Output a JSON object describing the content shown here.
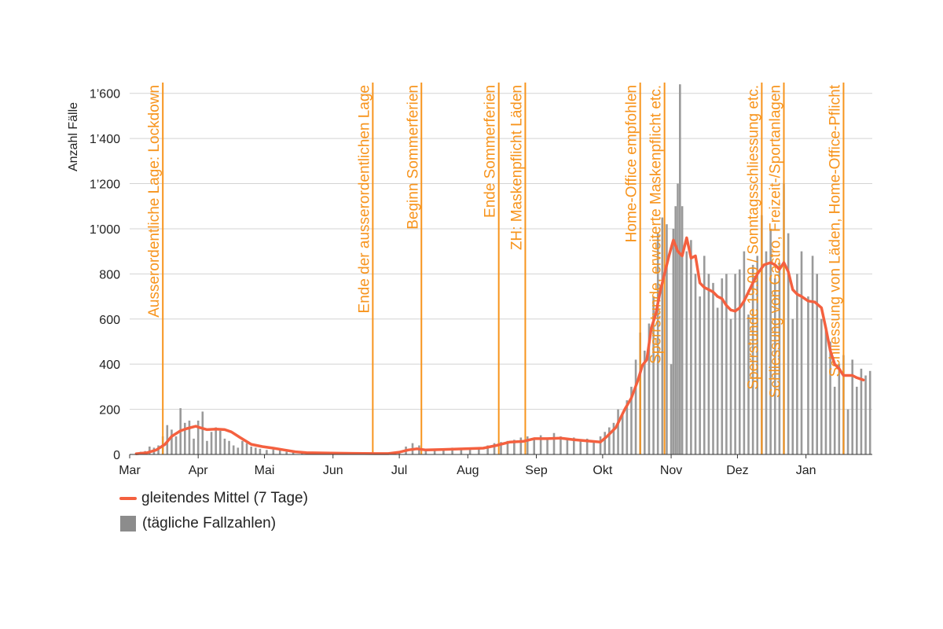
{
  "chart_data": {
    "type": "bar",
    "ylabel": "Anzahl Fälle",
    "ylim": [
      0,
      1700
    ],
    "yticks": [
      0,
      200,
      400,
      600,
      800,
      1000,
      1200,
      1400,
      1600
    ],
    "ytick_labels": [
      "0",
      "200",
      "400",
      "600",
      "800",
      "1’000",
      "1’200",
      "1’400",
      "1’600"
    ],
    "x_start": "2020-03-01",
    "x_end": "2021-01-31",
    "month_ticks": [
      {
        "date": "2020-03-01",
        "label": "Mar"
      },
      {
        "date": "2020-04-01",
        "label": "Apr"
      },
      {
        "date": "2020-05-01",
        "label": "Mai"
      },
      {
        "date": "2020-06-01",
        "label": "Jun"
      },
      {
        "date": "2020-07-01",
        "label": "Jul"
      },
      {
        "date": "2020-08-01",
        "label": "Aug"
      },
      {
        "date": "2020-09-01",
        "label": "Sep"
      },
      {
        "date": "2020-10-01",
        "label": "Okt"
      },
      {
        "date": "2020-11-01",
        "label": "Nov"
      },
      {
        "date": "2020-12-01",
        "label": "Dez"
      },
      {
        "date": "2021-01-01",
        "label": "Jan"
      }
    ],
    "grid": true,
    "legend_position": "bottom-left",
    "series": [
      {
        "name": "gleitendes Mittel (7 Tage)",
        "type": "line",
        "color": "#f4603f",
        "points": [
          [
            "2020-03-04",
            3
          ],
          [
            "2020-03-09",
            8
          ],
          [
            "2020-03-13",
            20
          ],
          [
            "2020-03-17",
            45
          ],
          [
            "2020-03-20",
            80
          ],
          [
            "2020-03-24",
            105
          ],
          [
            "2020-03-27",
            115
          ],
          [
            "2020-03-31",
            125
          ],
          [
            "2020-04-02",
            118
          ],
          [
            "2020-04-05",
            110
          ],
          [
            "2020-04-09",
            112
          ],
          [
            "2020-04-13",
            110
          ],
          [
            "2020-04-16",
            100
          ],
          [
            "2020-04-20",
            75
          ],
          [
            "2020-04-25",
            45
          ],
          [
            "2020-04-30",
            35
          ],
          [
            "2020-05-05",
            28
          ],
          [
            "2020-05-10",
            20
          ],
          [
            "2020-05-15",
            12
          ],
          [
            "2020-05-20",
            8
          ],
          [
            "2020-05-31",
            6
          ],
          [
            "2020-06-10",
            5
          ],
          [
            "2020-06-20",
            4
          ],
          [
            "2020-06-26",
            4
          ],
          [
            "2020-07-01",
            10
          ],
          [
            "2020-07-05",
            20
          ],
          [
            "2020-07-09",
            25
          ],
          [
            "2020-07-13",
            20
          ],
          [
            "2020-07-20",
            22
          ],
          [
            "2020-07-31",
            25
          ],
          [
            "2020-08-08",
            28
          ],
          [
            "2020-08-14",
            40
          ],
          [
            "2020-08-20",
            55
          ],
          [
            "2020-08-26",
            58
          ],
          [
            "2020-08-31",
            70
          ],
          [
            "2020-09-06",
            70
          ],
          [
            "2020-09-12",
            72
          ],
          [
            "2020-09-18",
            65
          ],
          [
            "2020-09-24",
            60
          ],
          [
            "2020-09-30",
            55
          ],
          [
            "2020-10-03",
            80
          ],
          [
            "2020-10-07",
            120
          ],
          [
            "2020-10-11",
            200
          ],
          [
            "2020-10-14",
            250
          ],
          [
            "2020-10-17",
            330
          ],
          [
            "2020-10-19",
            395
          ],
          [
            "2020-10-21",
            420
          ],
          [
            "2020-10-23",
            560
          ],
          [
            "2020-10-25",
            620
          ],
          [
            "2020-10-27",
            720
          ],
          [
            "2020-10-29",
            800
          ],
          [
            "2020-10-31",
            880
          ],
          [
            "2020-11-02",
            950
          ],
          [
            "2020-11-04",
            900
          ],
          [
            "2020-11-06",
            880
          ],
          [
            "2020-11-08",
            960
          ],
          [
            "2020-11-10",
            870
          ],
          [
            "2020-11-12",
            880
          ],
          [
            "2020-11-14",
            760
          ],
          [
            "2020-11-16",
            740
          ],
          [
            "2020-11-18",
            730
          ],
          [
            "2020-11-20",
            720
          ],
          [
            "2020-11-22",
            700
          ],
          [
            "2020-11-24",
            690
          ],
          [
            "2020-11-26",
            660
          ],
          [
            "2020-11-28",
            640
          ],
          [
            "2020-11-30",
            635
          ],
          [
            "2020-12-02",
            650
          ],
          [
            "2020-12-04",
            680
          ],
          [
            "2020-12-06",
            720
          ],
          [
            "2020-12-08",
            760
          ],
          [
            "2020-12-10",
            800
          ],
          [
            "2020-12-13",
            840
          ],
          [
            "2020-12-16",
            850
          ],
          [
            "2020-12-18",
            840
          ],
          [
            "2020-12-20",
            820
          ],
          [
            "2020-12-22",
            850
          ],
          [
            "2020-12-24",
            810
          ],
          [
            "2020-12-26",
            730
          ],
          [
            "2020-12-28",
            710
          ],
          [
            "2020-12-30",
            700
          ],
          [
            "2021-01-02",
            680
          ],
          [
            "2021-01-05",
            675
          ],
          [
            "2021-01-08",
            650
          ],
          [
            "2021-01-10",
            560
          ],
          [
            "2021-01-12",
            460
          ],
          [
            "2021-01-14",
            400
          ],
          [
            "2021-01-16",
            380
          ],
          [
            "2021-01-18",
            350
          ],
          [
            "2021-01-22",
            350
          ],
          [
            "2021-01-24",
            340
          ],
          [
            "2021-01-27",
            330
          ]
        ]
      },
      {
        "name": "(tägliche Fallzahlen)",
        "type": "bar",
        "color": "#8c8c8c",
        "points": [
          [
            "2020-03-02",
            2
          ],
          [
            "2020-03-04",
            5
          ],
          [
            "2020-03-06",
            12
          ],
          [
            "2020-03-08",
            15
          ],
          [
            "2020-03-10",
            35
          ],
          [
            "2020-03-12",
            30
          ],
          [
            "2020-03-14",
            40
          ],
          [
            "2020-03-16",
            80
          ],
          [
            "2020-03-18",
            130
          ],
          [
            "2020-03-20",
            110
          ],
          [
            "2020-03-22",
            80
          ],
          [
            "2020-03-24",
            205
          ],
          [
            "2020-03-26",
            140
          ],
          [
            "2020-03-28",
            150
          ],
          [
            "2020-03-30",
            70
          ],
          [
            "2020-04-01",
            150
          ],
          [
            "2020-04-03",
            190
          ],
          [
            "2020-04-05",
            60
          ],
          [
            "2020-04-07",
            100
          ],
          [
            "2020-04-09",
            120
          ],
          [
            "2020-04-11",
            105
          ],
          [
            "2020-04-13",
            70
          ],
          [
            "2020-04-15",
            60
          ],
          [
            "2020-04-17",
            40
          ],
          [
            "2020-04-19",
            30
          ],
          [
            "2020-04-21",
            60
          ],
          [
            "2020-04-23",
            50
          ],
          [
            "2020-04-25",
            35
          ],
          [
            "2020-04-27",
            30
          ],
          [
            "2020-04-29",
            25
          ],
          [
            "2020-05-02",
            20
          ],
          [
            "2020-05-05",
            22
          ],
          [
            "2020-05-08",
            18
          ],
          [
            "2020-05-11",
            12
          ],
          [
            "2020-05-14",
            10
          ],
          [
            "2020-05-18",
            8
          ],
          [
            "2020-05-22",
            6
          ],
          [
            "2020-05-26",
            8
          ],
          [
            "2020-05-30",
            5
          ],
          [
            "2020-06-03",
            6
          ],
          [
            "2020-06-07",
            4
          ],
          [
            "2020-06-11",
            5
          ],
          [
            "2020-06-15",
            4
          ],
          [
            "2020-06-19",
            6
          ],
          [
            "2020-06-23",
            5
          ],
          [
            "2020-06-27",
            8
          ],
          [
            "2020-07-01",
            15
          ],
          [
            "2020-07-04",
            35
          ],
          [
            "2020-07-07",
            50
          ],
          [
            "2020-07-10",
            40
          ],
          [
            "2020-07-13",
            25
          ],
          [
            "2020-07-17",
            20
          ],
          [
            "2020-07-21",
            25
          ],
          [
            "2020-07-25",
            30
          ],
          [
            "2020-07-29",
            25
          ],
          [
            "2020-08-02",
            30
          ],
          [
            "2020-08-06",
            28
          ],
          [
            "2020-08-10",
            40
          ],
          [
            "2020-08-13",
            50
          ],
          [
            "2020-08-16",
            55
          ],
          [
            "2020-08-19",
            60
          ],
          [
            "2020-08-22",
            65
          ],
          [
            "2020-08-25",
            75
          ],
          [
            "2020-08-28",
            80
          ],
          [
            "2020-08-31",
            70
          ],
          [
            "2020-09-03",
            85
          ],
          [
            "2020-09-06",
            75
          ],
          [
            "2020-09-09",
            95
          ],
          [
            "2020-09-12",
            80
          ],
          [
            "2020-09-15",
            70
          ],
          [
            "2020-09-18",
            75
          ],
          [
            "2020-09-21",
            60
          ],
          [
            "2020-09-24",
            70
          ],
          [
            "2020-09-27",
            55
          ],
          [
            "2020-09-30",
            80
          ],
          [
            "2020-10-02",
            100
          ],
          [
            "2020-10-04",
            120
          ],
          [
            "2020-10-06",
            140
          ],
          [
            "2020-10-08",
            200
          ],
          [
            "2020-10-10",
            180
          ],
          [
            "2020-10-12",
            240
          ],
          [
            "2020-10-14",
            300
          ],
          [
            "2020-10-16",
            420
          ],
          [
            "2020-10-18",
            540
          ],
          [
            "2020-10-20",
            460
          ],
          [
            "2020-10-22",
            580
          ],
          [
            "2020-10-24",
            700
          ],
          [
            "2020-10-26",
            980
          ],
          [
            "2020-10-28",
            1050
          ],
          [
            "2020-10-30",
            1020
          ],
          [
            "2020-11-01",
            400
          ],
          [
            "2020-11-02",
            1000
          ],
          [
            "2020-11-03",
            1100
          ],
          [
            "2020-11-04",
            1200
          ],
          [
            "2020-11-05",
            1640
          ],
          [
            "2020-11-06",
            1100
          ],
          [
            "2020-11-08",
            900
          ],
          [
            "2020-11-10",
            950
          ],
          [
            "2020-11-12",
            800
          ],
          [
            "2020-11-14",
            700
          ],
          [
            "2020-11-16",
            880
          ],
          [
            "2020-11-18",
            800
          ],
          [
            "2020-11-20",
            760
          ],
          [
            "2020-11-22",
            650
          ],
          [
            "2020-11-24",
            780
          ],
          [
            "2020-11-26",
            800
          ],
          [
            "2020-11-28",
            600
          ],
          [
            "2020-11-30",
            800
          ],
          [
            "2020-12-02",
            820
          ],
          [
            "2020-12-04",
            900
          ],
          [
            "2020-12-06",
            620
          ],
          [
            "2020-12-08",
            840
          ],
          [
            "2020-12-10",
            880
          ],
          [
            "2020-12-12",
            1060
          ],
          [
            "2020-12-14",
            900
          ],
          [
            "2020-12-16",
            1000
          ],
          [
            "2020-12-18",
            780
          ],
          [
            "2020-12-20",
            850
          ],
          [
            "2020-12-22",
            1200
          ],
          [
            "2020-12-24",
            980
          ],
          [
            "2020-12-26",
            600
          ],
          [
            "2020-12-28",
            800
          ],
          [
            "2020-12-30",
            900
          ],
          [
            "2021-01-02",
            700
          ],
          [
            "2021-01-04",
            880
          ],
          [
            "2021-01-06",
            800
          ],
          [
            "2021-01-08",
            600
          ],
          [
            "2021-01-10",
            550
          ],
          [
            "2021-01-12",
            500
          ],
          [
            "2021-01-14",
            300
          ],
          [
            "2021-01-16",
            400
          ],
          [
            "2021-01-18",
            440
          ],
          [
            "2021-01-20",
            200
          ],
          [
            "2021-01-22",
            420
          ],
          [
            "2021-01-24",
            300
          ],
          [
            "2021-01-26",
            380
          ],
          [
            "2021-01-28",
            350
          ],
          [
            "2021-01-30",
            370
          ]
        ]
      }
    ],
    "events": [
      {
        "date": "2020-03-16",
        "label": "Ausserordentliche Lage: Lockdown"
      },
      {
        "date": "2020-06-19",
        "label": "Ende der ausserordentlichen Lage"
      },
      {
        "date": "2020-07-11",
        "label": "Beginn Sommerferien"
      },
      {
        "date": "2020-08-15",
        "label": "Ende Sommerferien"
      },
      {
        "date": "2020-08-27",
        "label": "ZH: Maskenpflicht Läden"
      },
      {
        "date": "2020-10-18",
        "label": "Home-Office empfohlen"
      },
      {
        "date": "2020-10-29",
        "label": "Sperrstunde, erweiterte Maskenpflicht etc."
      },
      {
        "date": "2020-12-12",
        "label": "Sperrstunde 19.00 / Sonntagsschliessung etc."
      },
      {
        "date": "2020-12-22",
        "label": "Schliessung von Gastro, Freizeit-/Sportanlagen"
      },
      {
        "date": "2021-01-18",
        "label": "Schliessung von Läden, Home-Office-Pflicht"
      }
    ],
    "event_color": "#f7941d"
  },
  "legend": {
    "line_label": "gleitendes Mittel (7 Tage)",
    "bar_label": "(tägliche Fallzahlen)"
  }
}
